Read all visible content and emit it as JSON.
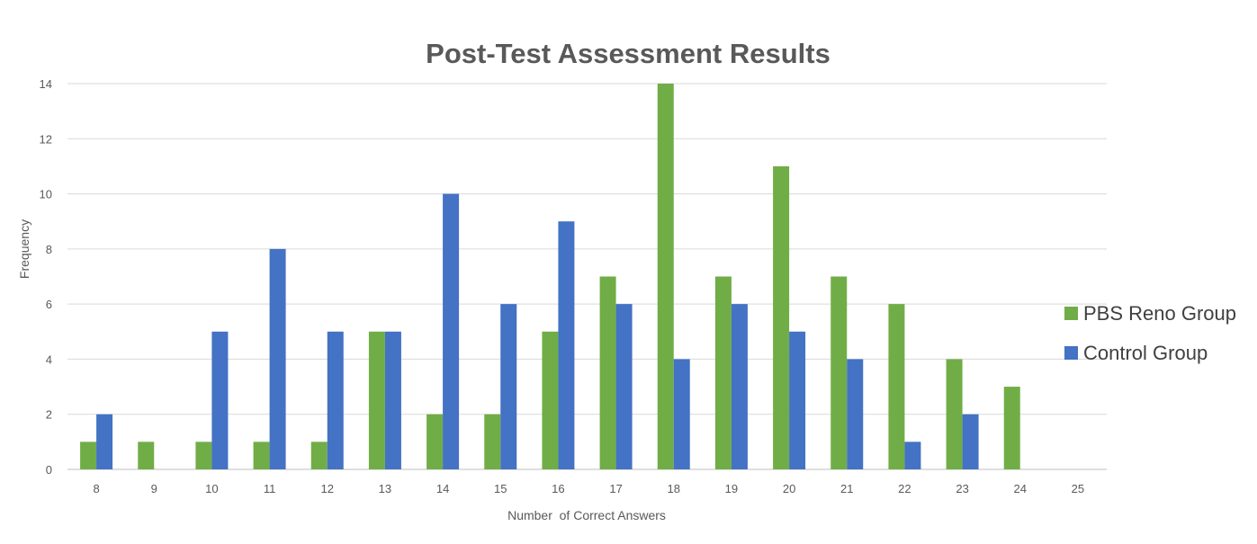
{
  "chart_data": {
    "type": "bar",
    "title": "Post-Test Assessment Results",
    "xlabel": "Number  of Correct Answers",
    "ylabel": "Frequency",
    "categories": [
      "8",
      "9",
      "10",
      "11",
      "12",
      "13",
      "14",
      "15",
      "16",
      "17",
      "18",
      "19",
      "20",
      "21",
      "22",
      "23",
      "24",
      "25"
    ],
    "series": [
      {
        "name": "PBS Reno Group",
        "color": "#70ad47",
        "values": [
          1,
          1,
          1,
          1,
          1,
          5,
          2,
          2,
          5,
          7,
          14,
          7,
          11,
          7,
          6,
          4,
          3,
          0
        ]
      },
      {
        "name": "Control Group",
        "color": "#4472c4",
        "values": [
          2,
          0,
          5,
          8,
          5,
          5,
          10,
          6,
          9,
          6,
          4,
          6,
          5,
          4,
          1,
          2,
          0,
          0
        ]
      }
    ],
    "ylim": [
      0,
      14
    ],
    "yticks": [
      0,
      2,
      4,
      6,
      8,
      10,
      12,
      14
    ],
    "grid": true,
    "legend_position": "right",
    "gridline_color": "#d9d9d9"
  }
}
